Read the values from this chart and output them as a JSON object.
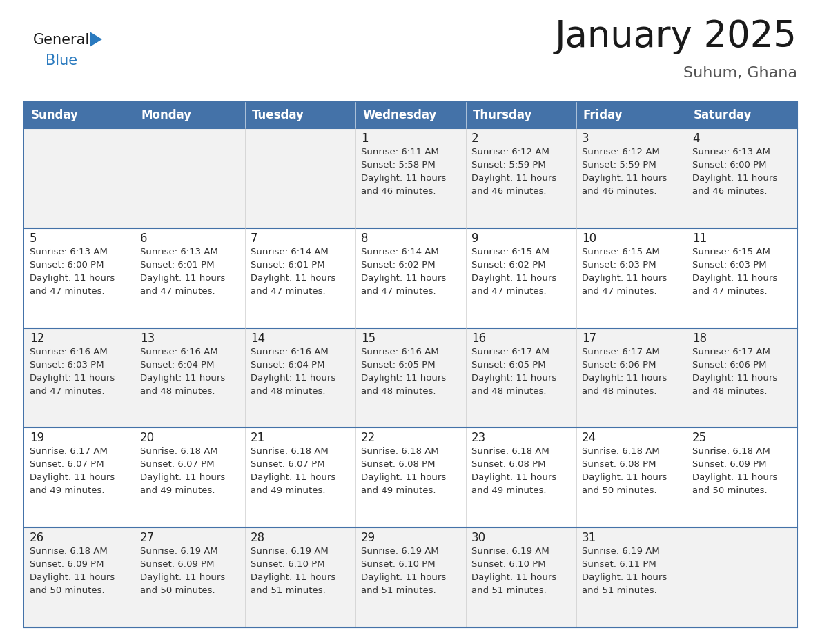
{
  "title": "January 2025",
  "subtitle": "Suhum, Ghana",
  "days_of_week": [
    "Sunday",
    "Monday",
    "Tuesday",
    "Wednesday",
    "Thursday",
    "Friday",
    "Saturday"
  ],
  "header_bg": "#4472a8",
  "header_text": "#ffffff",
  "cell_bg_odd": "#f2f2f2",
  "cell_bg_even": "#ffffff",
  "row_divider_color": "#4472a8",
  "outer_border_color": "#4472a8",
  "day_num_color": "#222222",
  "cell_text_color": "#333333",
  "title_color": "#1a1a1a",
  "subtitle_color": "#555555",
  "logo_text_color": "#1a1a1a",
  "logo_blue_color": "#2a7abf",
  "triangle_color": "#2a7abf",
  "calendar_data": [
    [
      null,
      null,
      null,
      {
        "day": 1,
        "sunrise": "6:11 AM",
        "sunset": "5:58 PM",
        "daylight_hrs": 11,
        "daylight_min": "46"
      },
      {
        "day": 2,
        "sunrise": "6:12 AM",
        "sunset": "5:59 PM",
        "daylight_hrs": 11,
        "daylight_min": "46"
      },
      {
        "day": 3,
        "sunrise": "6:12 AM",
        "sunset": "5:59 PM",
        "daylight_hrs": 11,
        "daylight_min": "46"
      },
      {
        "day": 4,
        "sunrise": "6:13 AM",
        "sunset": "6:00 PM",
        "daylight_hrs": 11,
        "daylight_min": "46"
      }
    ],
    [
      {
        "day": 5,
        "sunrise": "6:13 AM",
        "sunset": "6:00 PM",
        "daylight_hrs": 11,
        "daylight_min": "47"
      },
      {
        "day": 6,
        "sunrise": "6:13 AM",
        "sunset": "6:01 PM",
        "daylight_hrs": 11,
        "daylight_min": "47"
      },
      {
        "day": 7,
        "sunrise": "6:14 AM",
        "sunset": "6:01 PM",
        "daylight_hrs": 11,
        "daylight_min": "47"
      },
      {
        "day": 8,
        "sunrise": "6:14 AM",
        "sunset": "6:02 PM",
        "daylight_hrs": 11,
        "daylight_min": "47"
      },
      {
        "day": 9,
        "sunrise": "6:15 AM",
        "sunset": "6:02 PM",
        "daylight_hrs": 11,
        "daylight_min": "47"
      },
      {
        "day": 10,
        "sunrise": "6:15 AM",
        "sunset": "6:03 PM",
        "daylight_hrs": 11,
        "daylight_min": "47"
      },
      {
        "day": 11,
        "sunrise": "6:15 AM",
        "sunset": "6:03 PM",
        "daylight_hrs": 11,
        "daylight_min": "47"
      }
    ],
    [
      {
        "day": 12,
        "sunrise": "6:16 AM",
        "sunset": "6:03 PM",
        "daylight_hrs": 11,
        "daylight_min": "47"
      },
      {
        "day": 13,
        "sunrise": "6:16 AM",
        "sunset": "6:04 PM",
        "daylight_hrs": 11,
        "daylight_min": "48"
      },
      {
        "day": 14,
        "sunrise": "6:16 AM",
        "sunset": "6:04 PM",
        "daylight_hrs": 11,
        "daylight_min": "48"
      },
      {
        "day": 15,
        "sunrise": "6:16 AM",
        "sunset": "6:05 PM",
        "daylight_hrs": 11,
        "daylight_min": "48"
      },
      {
        "day": 16,
        "sunrise": "6:17 AM",
        "sunset": "6:05 PM",
        "daylight_hrs": 11,
        "daylight_min": "48"
      },
      {
        "day": 17,
        "sunrise": "6:17 AM",
        "sunset": "6:06 PM",
        "daylight_hrs": 11,
        "daylight_min": "48"
      },
      {
        "day": 18,
        "sunrise": "6:17 AM",
        "sunset": "6:06 PM",
        "daylight_hrs": 11,
        "daylight_min": "48"
      }
    ],
    [
      {
        "day": 19,
        "sunrise": "6:17 AM",
        "sunset": "6:07 PM",
        "daylight_hrs": 11,
        "daylight_min": "49"
      },
      {
        "day": 20,
        "sunrise": "6:18 AM",
        "sunset": "6:07 PM",
        "daylight_hrs": 11,
        "daylight_min": "49"
      },
      {
        "day": 21,
        "sunrise": "6:18 AM",
        "sunset": "6:07 PM",
        "daylight_hrs": 11,
        "daylight_min": "49"
      },
      {
        "day": 22,
        "sunrise": "6:18 AM",
        "sunset": "6:08 PM",
        "daylight_hrs": 11,
        "daylight_min": "49"
      },
      {
        "day": 23,
        "sunrise": "6:18 AM",
        "sunset": "6:08 PM",
        "daylight_hrs": 11,
        "daylight_min": "49"
      },
      {
        "day": 24,
        "sunrise": "6:18 AM",
        "sunset": "6:08 PM",
        "daylight_hrs": 11,
        "daylight_min": "50"
      },
      {
        "day": 25,
        "sunrise": "6:18 AM",
        "sunset": "6:09 PM",
        "daylight_hrs": 11,
        "daylight_min": "50"
      }
    ],
    [
      {
        "day": 26,
        "sunrise": "6:18 AM",
        "sunset": "6:09 PM",
        "daylight_hrs": 11,
        "daylight_min": "50"
      },
      {
        "day": 27,
        "sunrise": "6:19 AM",
        "sunset": "6:09 PM",
        "daylight_hrs": 11,
        "daylight_min": "50"
      },
      {
        "day": 28,
        "sunrise": "6:19 AM",
        "sunset": "6:10 PM",
        "daylight_hrs": 11,
        "daylight_min": "51"
      },
      {
        "day": 29,
        "sunrise": "6:19 AM",
        "sunset": "6:10 PM",
        "daylight_hrs": 11,
        "daylight_min": "51"
      },
      {
        "day": 30,
        "sunrise": "6:19 AM",
        "sunset": "6:10 PM",
        "daylight_hrs": 11,
        "daylight_min": "51"
      },
      {
        "day": 31,
        "sunrise": "6:19 AM",
        "sunset": "6:11 PM",
        "daylight_hrs": 11,
        "daylight_min": "51"
      },
      null
    ]
  ]
}
